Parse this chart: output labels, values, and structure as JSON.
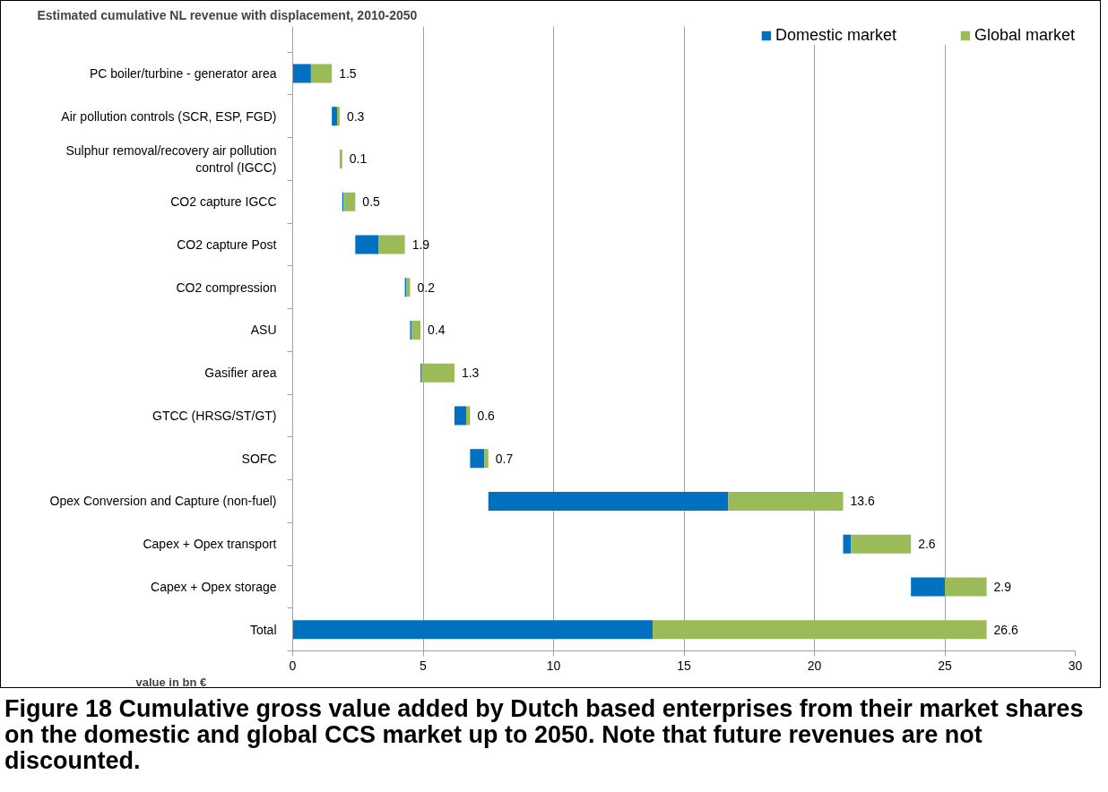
{
  "chart_data": {
    "type": "bar",
    "orientation": "horizontal",
    "title": "Estimated cumulative NL revenue with displacement, 2010-2050",
    "xlabel": "value in bn €",
    "categories": [
      "PC boiler/turbine - generator area",
      "Air pollution controls (SCR, ESP, FGD)",
      "Sulphur removal/recovery air pollution control (IGCC)",
      "CO2 capture IGCC",
      "CO2 capture Post",
      "CO2 compression",
      "ASU",
      "Gasifier area",
      "GTCC (HRSG/ST/GT)",
      "SOFC",
      "Opex Conversion and Capture (non-fuel)",
      "Capex + Opex transport",
      "Capex + Opex storage",
      "Total"
    ],
    "series": [
      {
        "name": "Domestic market",
        "color": "#0070c0",
        "base": [
          0,
          1.5,
          null,
          1.9,
          2.4,
          4.3,
          4.5,
          4.9,
          6.2,
          6.8,
          7.5,
          21.1,
          23.7,
          0
        ],
        "values": [
          0.7,
          0.2,
          null,
          0.05,
          0.9,
          0.05,
          0.05,
          0.05,
          0.45,
          0.55,
          9.2,
          0.3,
          1.3,
          13.8
        ]
      },
      {
        "name": "Global market",
        "color": "#9bbb59",
        "base": [
          0.7,
          1.7,
          1.8,
          1.95,
          3.3,
          4.35,
          4.55,
          4.95,
          6.65,
          7.35,
          16.7,
          21.4,
          25.0,
          13.8
        ],
        "values": [
          0.8,
          0.1,
          0.1,
          0.45,
          1.0,
          0.15,
          0.35,
          1.25,
          0.15,
          0.15,
          4.4,
          2.3,
          1.6,
          12.8
        ]
      }
    ],
    "totals": [
      "1.5",
      "0.3",
      "0.1",
      "0.5",
      "1.9",
      "0.2",
      "0.4",
      "1.3",
      "0.6",
      "0.7",
      "13.6",
      "2.6",
      "2.9",
      "26.6"
    ],
    "xlim": [
      0,
      30
    ],
    "xticks": [
      0,
      5,
      10,
      15,
      20,
      25,
      30
    ],
    "grid": "x",
    "legend": "top right",
    "annotations": [
      "Figure 18 Cumulative gross value added by Dutch based enterprises from their market shares on the domestic and global CCS market up to 2050. Note that future revenues are not discounted."
    ]
  }
}
